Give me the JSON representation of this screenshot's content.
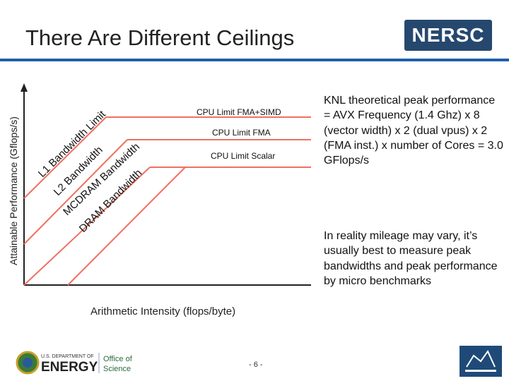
{
  "slide": {
    "title": "There Are Different Ceilings",
    "page_number": "- 6 -"
  },
  "logos": {
    "nersc": "NERSC",
    "doe_line1": "U.S. DEPARTMENT OF",
    "doe_line2": "ENERGY",
    "doe_office1": "Office of",
    "doe_office2": "Science"
  },
  "diagram": {
    "y_axis_label": "Attainable Performance (Gflops/s)",
    "x_axis_label": "Arithmetic Intensity (flops/byte)",
    "ceilings": [
      {
        "label": "CPU Limit FMA+SIMD"
      },
      {
        "label": "CPU Limit FMA"
      },
      {
        "label": "CPU Limit Scalar"
      }
    ],
    "bandwidths": [
      {
        "label": "L1 Bandwidth Limit"
      },
      {
        "label": "L2 Bandwidth"
      },
      {
        "label": "MCDRAM Bandwidth"
      },
      {
        "label": "DRAM Bandwidth"
      }
    ]
  },
  "notes": {
    "knl_peak": "KNL theoretical peak performance = AVX Frequency (1.4 Ghz) x 8 (vector width) x 2 (dual vpus) x 2 (FMA inst.) x number of Cores = 3.0 GFlops/s",
    "reality": "In reality mileage may vary, it’s usually best to measure peak bandwidths and peak performance by micro benchmarks"
  },
  "colors": {
    "ceiling": "#f07060",
    "axis": "#222222",
    "rule": "#1f5fa8"
  }
}
